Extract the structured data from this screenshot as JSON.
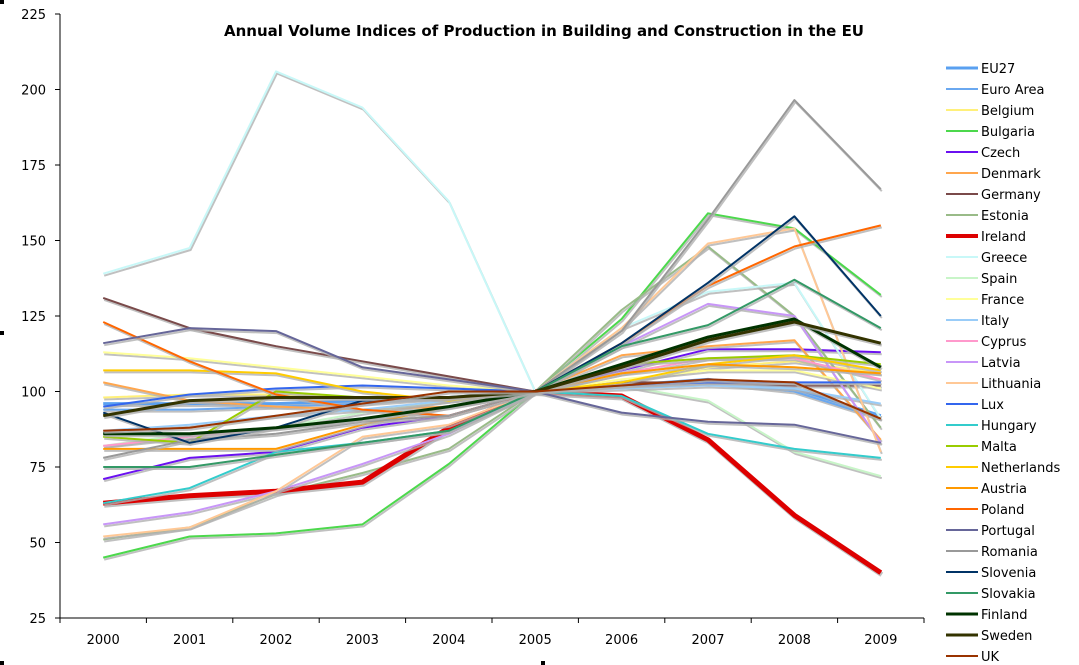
{
  "chart_data": {
    "type": "line",
    "title": "Annual Volume Indices of Production in Building and Construction in the EU",
    "xlabel": "",
    "ylabel": "",
    "x": [
      "2000",
      "2001",
      "2002",
      "2003",
      "2004",
      "2005",
      "2006",
      "2007",
      "2008",
      "2009"
    ],
    "ylim": [
      25,
      225
    ],
    "yticks": [
      25,
      50,
      75,
      100,
      125,
      150,
      175,
      200,
      225
    ],
    "grid": false,
    "legend": "right",
    "series": [
      {
        "name": "EU27",
        "color": "#5aa0f0",
        "emphasis": "thick",
        "values": [
          96,
          96,
          96,
          97,
          98,
          100,
          102,
          104,
          101,
          92
        ]
      },
      {
        "name": "Euro Area",
        "color": "#6aa8f0",
        "emphasis": "normal",
        "values": [
          94,
          94,
          95,
          96,
          98,
          100,
          102,
          103,
          100,
          91
        ]
      },
      {
        "name": "Belgium",
        "color": "#fff07a",
        "emphasis": "normal",
        "values": [
          98,
          99,
          99,
          98,
          98,
          100,
          103,
          108,
          110,
          106
        ]
      },
      {
        "name": "Bulgaria",
        "color": "#4cd84c",
        "emphasis": "normal",
        "values": [
          45,
          52,
          53,
          56,
          76,
          100,
          124,
          159,
          154,
          132
        ]
      },
      {
        "name": "Czech",
        "color": "#6a10f0",
        "emphasis": "normal",
        "values": [
          71,
          78,
          80,
          88,
          92,
          100,
          107,
          114,
          114,
          113
        ]
      },
      {
        "name": "Denmark",
        "color": "#ffa64d",
        "emphasis": "normal",
        "values": [
          103,
          97,
          95,
          94,
          95,
          100,
          112,
          115,
          117,
          84
        ]
      },
      {
        "name": "Germany",
        "color": "#7a4a4a",
        "emphasis": "normal",
        "values": [
          131,
          121,
          115,
          110,
          105,
          100,
          103,
          103,
          102,
          102
        ]
      },
      {
        "name": "Estonia",
        "color": "#99bb88",
        "emphasis": "normal",
        "values": [
          51,
          55,
          66,
          73,
          81,
          100,
          127,
          148,
          125,
          88
        ]
      },
      {
        "name": "Ireland",
        "color": "#dd0000",
        "emphasis": "extra-thick",
        "values": [
          63,
          65.5,
          67,
          70,
          88,
          100,
          98.5,
          84,
          59,
          40
        ]
      },
      {
        "name": "Greece",
        "color": "#c8f8f8",
        "emphasis": "normal",
        "values": [
          139,
          147.5,
          206,
          194,
          163,
          100,
          121,
          133,
          136,
          91
        ]
      },
      {
        "name": "Spain",
        "color": "#c8f5c8",
        "emphasis": "normal",
        "values": [
          82,
          86,
          88,
          93,
          97,
          100,
          102,
          97,
          80,
          72
        ]
      },
      {
        "name": "France",
        "color": "#ffff99",
        "emphasis": "normal",
        "values": [
          113,
          111,
          108,
          105,
          102,
          100,
          104,
          107,
          107,
          101
        ]
      },
      {
        "name": "Italy",
        "color": "#99ccf8",
        "emphasis": "normal",
        "values": [
          87,
          89,
          92,
          94,
          97,
          100,
          101,
          102,
          101,
          96
        ]
      },
      {
        "name": "Cyprus",
        "color": "#ff99cc",
        "emphasis": "normal",
        "values": [
          82,
          85,
          88,
          91,
          95,
          100,
          106,
          111,
          111,
          104
        ]
      },
      {
        "name": "Latvia",
        "color": "#c896f8",
        "emphasis": "normal",
        "values": [
          56,
          60,
          67,
          76,
          86,
          100,
          115,
          129,
          125,
          83
        ]
      },
      {
        "name": "Lithuania",
        "color": "#ffc896",
        "emphasis": "normal",
        "values": [
          52,
          55,
          67,
          85,
          89,
          100,
          121,
          149,
          154,
          80
        ]
      },
      {
        "name": "Lux",
        "color": "#3366ee",
        "emphasis": "normal",
        "values": [
          95,
          99,
          101,
          102,
          101,
          100,
          102,
          103,
          103,
          103
        ]
      },
      {
        "name": "Hungary",
        "color": "#33cccc",
        "emphasis": "normal",
        "values": [
          63,
          68,
          80,
          83,
          87,
          100,
          98.5,
          86,
          81,
          78
        ]
      },
      {
        "name": "Malta",
        "color": "#99cc00",
        "emphasis": "normal",
        "values": [
          85,
          83,
          100,
          98,
          98,
          100,
          109,
          111,
          112,
          109
        ]
      },
      {
        "name": "Netherlands",
        "color": "#ffcc00",
        "emphasis": "normal",
        "values": [
          107,
          107,
          106,
          100,
          97,
          100,
          103,
          109,
          112,
          107
        ]
      },
      {
        "name": "Austria",
        "color": "#ff9900",
        "emphasis": "normal",
        "values": [
          81,
          81,
          81,
          89,
          95,
          100,
          106,
          109,
          108,
          106
        ]
      },
      {
        "name": "Poland",
        "color": "#ff6600",
        "emphasis": "normal",
        "values": [
          123,
          110,
          99,
          94,
          92,
          100,
          116,
          135,
          148,
          155
        ]
      },
      {
        "name": "Portugal",
        "color": "#666699",
        "emphasis": "normal",
        "values": [
          116,
          121,
          120,
          108,
          104,
          100,
          93,
          90,
          89,
          83
        ]
      },
      {
        "name": "Romania",
        "color": "#999999",
        "emphasis": "normal",
        "values": [
          78,
          84,
          86,
          90,
          92,
          100,
          120,
          157,
          196.5,
          167
        ]
      },
      {
        "name": "Slovenia",
        "color": "#003366",
        "emphasis": "normal",
        "values": [
          93,
          83,
          88,
          97,
          98,
          100,
          116,
          136,
          158,
          125
        ]
      },
      {
        "name": "Slovakia",
        "color": "#339966",
        "emphasis": "normal",
        "values": [
          75,
          75,
          79,
          83,
          87,
          100,
          115,
          122,
          137,
          121
        ]
      },
      {
        "name": "Finland",
        "color": "#003300",
        "emphasis": "thick",
        "values": [
          86,
          86,
          88,
          91,
          95,
          100,
          109,
          118,
          124,
          108
        ]
      },
      {
        "name": "Sweden",
        "color": "#333300",
        "emphasis": "thick",
        "values": [
          92,
          97,
          98,
          98,
          98,
          100,
          108,
          117,
          123,
          116
        ]
      },
      {
        "name": "UK",
        "color": "#993300",
        "emphasis": "normal",
        "values": [
          87,
          88,
          92,
          96,
          100,
          100,
          102,
          104,
          103,
          91
        ]
      }
    ]
  }
}
